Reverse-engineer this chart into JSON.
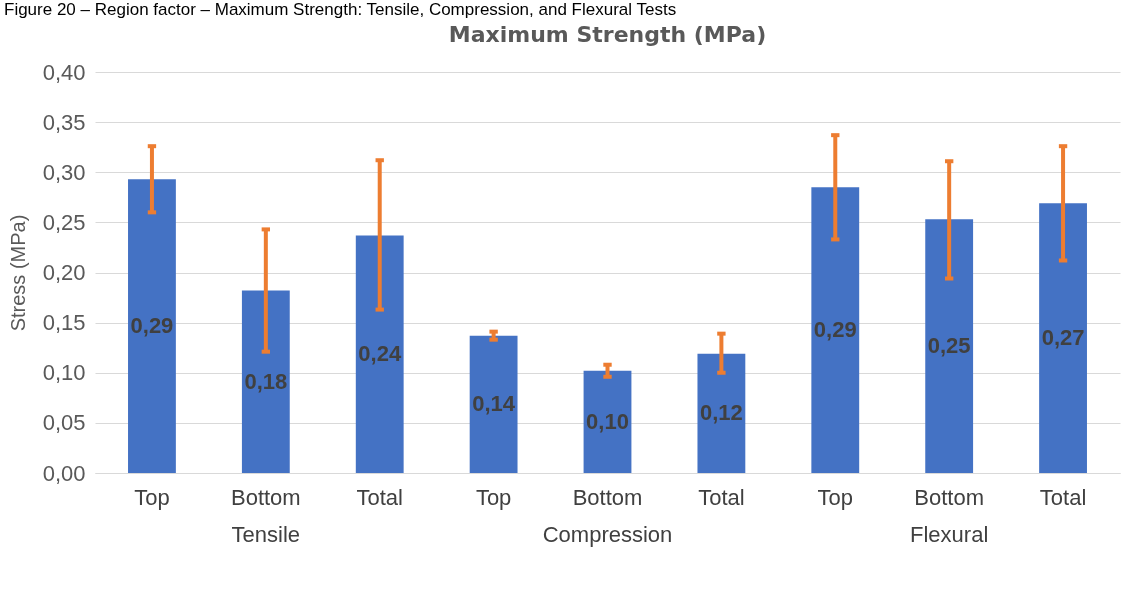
{
  "chart_data": {
    "type": "bar",
    "title": "Maximum Strength (MPa)",
    "ylabel": "Stress (MPa)",
    "categories": [
      "Top",
      "Bottom",
      "Total",
      "Top",
      "Bottom",
      "Total",
      "Top",
      "Bottom",
      "Total"
    ],
    "values": [
      0.293,
      0.182,
      0.237,
      0.137,
      0.102,
      0.119,
      0.285,
      0.253,
      0.269
    ],
    "value_labels": [
      "0,29",
      "0,18",
      "0,24",
      "0,14",
      "0,10",
      "0,12",
      "0,29",
      "0,25",
      "0,27"
    ],
    "errors": [
      [
        0.26,
        0.326
      ],
      [
        0.121,
        0.243
      ],
      [
        0.163,
        0.312
      ],
      [
        0.133,
        0.141
      ],
      [
        0.096,
        0.108
      ],
      [
        0.1,
        0.139
      ],
      [
        0.233,
        0.337
      ],
      [
        0.194,
        0.311
      ],
      [
        0.212,
        0.326
      ]
    ],
    "color": "#4472c4",
    "ylim": [
      0,
      0.4
    ],
    "yticks": [
      {
        "value": 0,
        "label": "0,00"
      },
      {
        "value": 0.05,
        "label": "0,05"
      },
      {
        "value": 0.1,
        "label": "0,10"
      },
      {
        "value": 0.15,
        "label": "0,15"
      },
      {
        "value": 0.2,
        "label": "0,20"
      },
      {
        "value": 0.25,
        "label": "0,25"
      },
      {
        "value": 0.3,
        "label": "0,30"
      },
      {
        "value": 0.35,
        "label": "0,35"
      },
      {
        "value": 0.4,
        "label": "0,40"
      }
    ],
    "grid": "y",
    "annotations": [
      "Figure 20 – Region factor – Maximum Strength: Tensile, Compression, and Flexural Tests",
      "Tensile",
      "Compression",
      "Flexural"
    ]
  }
}
